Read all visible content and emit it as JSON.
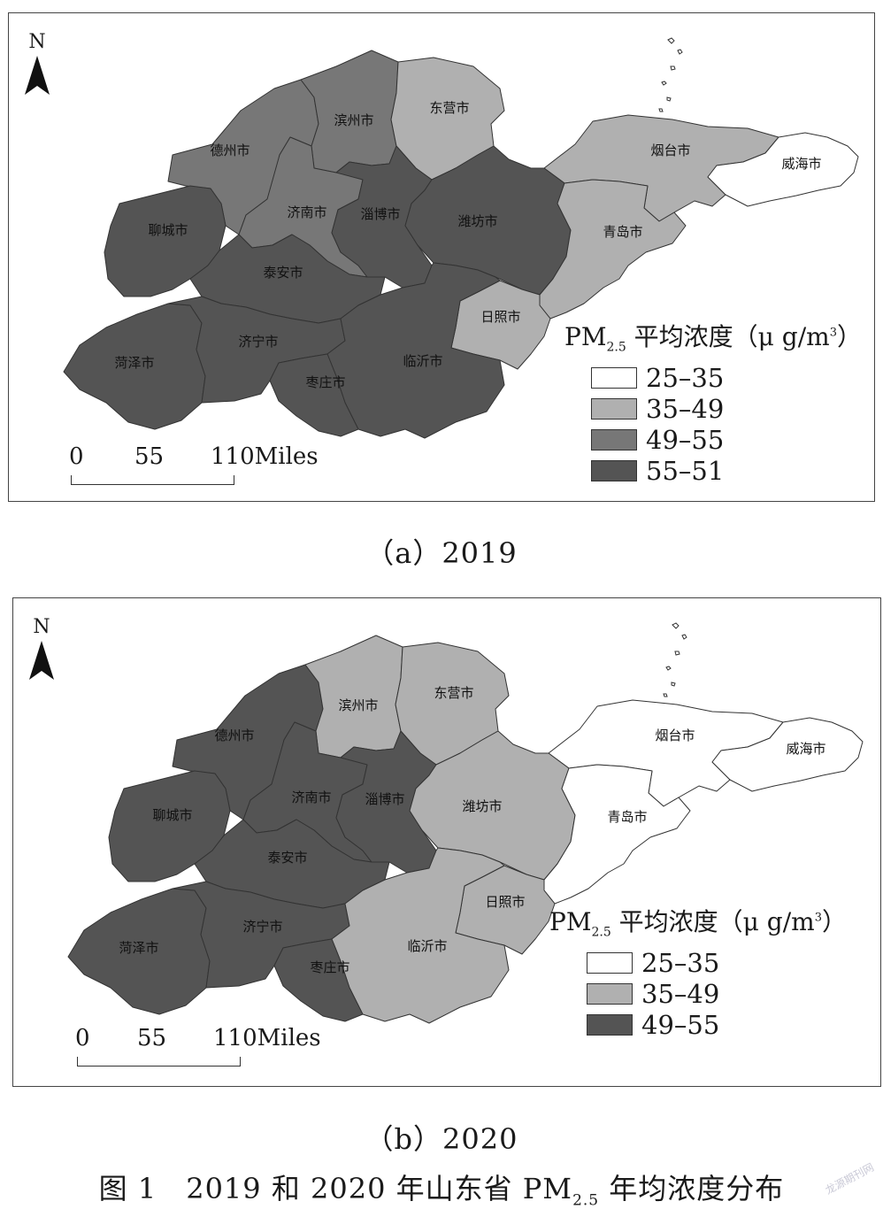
{
  "colors": {
    "c1": "#ffffff",
    "c2": "#b0b0b0",
    "c3": "#777777",
    "c4": "#545454",
    "border": "#333333"
  },
  "panels": {
    "a": {
      "caption": "（a）2019",
      "north": "N",
      "legend_title": {
        "prefix": "PM",
        "sub": "2.5",
        "mid": " 平均浓度（μ g/m",
        "sup": "3",
        "suffix": "）"
      },
      "legend": [
        {
          "label": "25–35",
          "color": "#ffffff"
        },
        {
          "label": "35–49",
          "color": "#b0b0b0"
        },
        {
          "label": "49–55",
          "color": "#777777"
        },
        {
          "label": "55–51",
          "color": "#545454"
        }
      ],
      "scale": {
        "l0": "0",
        "l1": "55",
        "l2": "110Miles"
      },
      "cities": {
        "dezhou": {
          "name": "德州市",
          "color": "#777777"
        },
        "binzhou": {
          "name": "滨州市",
          "color": "#777777"
        },
        "dongying": {
          "name": "东营市",
          "color": "#b0b0b0"
        },
        "yantai": {
          "name": "烟台市",
          "color": "#b0b0b0"
        },
        "weihai": {
          "name": "威海市",
          "color": "#ffffff"
        },
        "liaocheng": {
          "name": "聊城市",
          "color": "#545454"
        },
        "jinan": {
          "name": "济南市",
          "color": "#777777"
        },
        "zibo": {
          "name": "淄博市",
          "color": "#545454"
        },
        "weifang": {
          "name": "潍坊市",
          "color": "#545454"
        },
        "qingdao": {
          "name": "青岛市",
          "color": "#b0b0b0"
        },
        "taian": {
          "name": "泰安市",
          "color": "#545454"
        },
        "rizhao": {
          "name": "日照市",
          "color": "#b0b0b0"
        },
        "heze": {
          "name": "菏泽市",
          "color": "#545454"
        },
        "jining": {
          "name": "济宁市",
          "color": "#545454"
        },
        "linyi": {
          "name": "临沂市",
          "color": "#545454"
        },
        "zaozhuang": {
          "name": "枣庄市",
          "color": "#545454"
        }
      }
    },
    "b": {
      "caption": "（b）2020",
      "north": "N",
      "legend_title": {
        "prefix": "PM",
        "sub": "2.5",
        "mid": " 平均浓度（μ g/m",
        "sup": "3",
        "suffix": "）"
      },
      "legend": [
        {
          "label": "25–35",
          "color": "#ffffff"
        },
        {
          "label": "35–49",
          "color": "#b0b0b0"
        },
        {
          "label": "49–55",
          "color": "#545454"
        }
      ],
      "scale": {
        "l0": "0",
        "l1": "55",
        "l2": "110Miles"
      },
      "cities": {
        "dezhou": {
          "name": "德州市",
          "color": "#545454"
        },
        "binzhou": {
          "name": "滨州市",
          "color": "#b0b0b0"
        },
        "dongying": {
          "name": "东营市",
          "color": "#b0b0b0"
        },
        "yantai": {
          "name": "烟台市",
          "color": "#ffffff"
        },
        "weihai": {
          "name": "威海市",
          "color": "#ffffff"
        },
        "liaocheng": {
          "name": "聊城市",
          "color": "#545454"
        },
        "jinan": {
          "name": "济南市",
          "color": "#545454"
        },
        "zibo": {
          "name": "淄博市",
          "color": "#545454"
        },
        "weifang": {
          "name": "潍坊市",
          "color": "#b0b0b0"
        },
        "qingdao": {
          "name": "青岛市",
          "color": "#ffffff"
        },
        "taian": {
          "name": "泰安市",
          "color": "#545454"
        },
        "rizhao": {
          "name": "日照市",
          "color": "#b0b0b0"
        },
        "heze": {
          "name": "菏泽市",
          "color": "#545454"
        },
        "jining": {
          "name": "济宁市",
          "color": "#545454"
        },
        "linyi": {
          "name": "临沂市",
          "color": "#b0b0b0"
        },
        "zaozhuang": {
          "name": "枣庄市",
          "color": "#545454"
        }
      }
    }
  },
  "figure_caption": {
    "prefix": "图 1　2019 和 2020 年山东省 PM",
    "sub": "2.5",
    "suffix": " 年均浓度分布"
  },
  "watermark": "龙源期刊网"
}
